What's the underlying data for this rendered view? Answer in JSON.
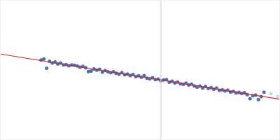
{
  "chart_data": {
    "type": "scatter",
    "xlim": [
      0,
      400
    ],
    "ylim": [
      0,
      200
    ],
    "tick_labels": false,
    "grid": false,
    "series": [
      {
        "type": "scatter",
        "color": "#4a6fb5",
        "marker": "circle",
        "x": [
          58,
          62,
          66,
          70,
          74,
          78,
          82,
          86,
          90,
          94,
          98,
          102,
          106,
          110,
          114,
          118,
          122,
          126,
          130,
          134,
          138,
          142,
          146,
          150,
          154,
          158,
          162,
          166,
          170,
          174,
          178,
          182,
          186,
          190,
          194,
          198,
          202,
          206,
          210,
          214,
          218,
          222,
          226,
          230,
          234,
          238,
          242,
          246,
          250,
          254,
          258,
          262,
          266,
          270,
          274,
          278,
          282,
          286,
          290,
          294,
          298,
          302,
          306,
          310,
          314,
          318,
          322,
          326,
          330,
          334,
          338,
          342,
          346,
          350,
          354,
          358,
          362,
          366,
          370,
          374,
          378
        ],
        "values": [
          114.5,
          115.8,
          102.5,
          112.6,
          110.2,
          111.5,
          108.6,
          110.1,
          107.2,
          107.9,
          106.0,
          107.3,
          106.8,
          105.9,
          104.0,
          105.2,
          103.4,
          97.8,
          98.5,
          101.6,
          99.8,
          100.9,
          97.0,
          99.3,
          97.5,
          96.1,
          97.6,
          95.2,
          93.9,
          96.1,
          93.3,
          94.2,
          92.0,
          93.6,
          90.4,
          91.7,
          89.6,
          91.9,
          88.1,
          87.3,
          88.9,
          86.0,
          86.8,
          84.5,
          85.6,
          86.2,
          82.4,
          83.9,
          81.2,
          82.7,
          80.1,
          79.4,
          81.0,
          78.3,
          79.5,
          77.0,
          75.2,
          76.8,
          74.1,
          76.3,
          73.5,
          74.4,
          72.1,
          73.9,
          70.8,
          71.5,
          69.7,
          71.0,
          68.2,
          69.3,
          66.9,
          67.8,
          66.1,
          67.2,
          64.4,
          58.6,
          62.8,
          63.9,
          57.2,
          61.5,
          68.0
        ]
      },
      {
        "type": "scatter",
        "color": "#c9d3e8",
        "marker": "circle",
        "x": [
          388,
          398
        ],
        "values": [
          66.0,
          61.5
        ]
      },
      {
        "type": "line",
        "color": "#d62728",
        "line_style": "solid",
        "x": [
          0,
          400
        ],
        "values": [
          123,
          58
        ]
      },
      {
        "type": "line",
        "color": "#c8d4ea",
        "line_style": "solid",
        "x": [
          230,
          230
        ],
        "values": [
          0,
          200
        ]
      }
    ]
  }
}
